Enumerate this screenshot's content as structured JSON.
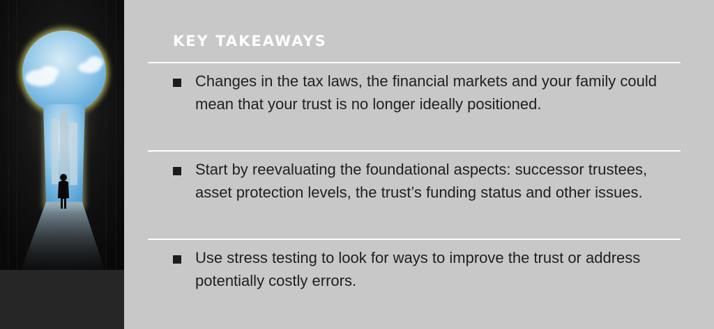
{
  "panel": {
    "heading": "KEY TAKEAWAYS"
  },
  "takeaways": [
    {
      "text": "Changes in the tax laws, the financial markets and your family could mean that your trust is no longer ideally positioned."
    },
    {
      "text": "Start by reevaluating the foundational aspects: successor trustees, asset protection levels, the trust’s funding status and other issues."
    },
    {
      "text": "Use stress testing to look for ways to improve the trust or address potentially costly errors."
    }
  ],
  "colors": {
    "panel_background": "#c8c8c8",
    "heading": "#ffffff",
    "body_text": "#1f1f1f",
    "divider": "#ffffff",
    "image_dark": "#262626"
  },
  "icons": {
    "image": "keyhole-silhouette-illustration",
    "bullet": "square-bullet-icon"
  }
}
